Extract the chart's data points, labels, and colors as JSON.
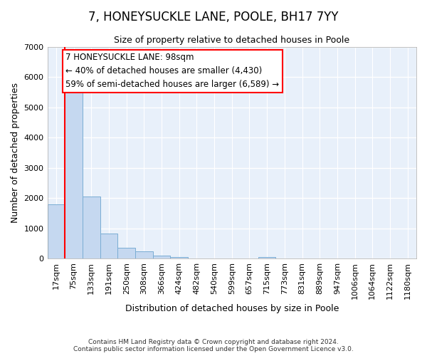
{
  "title": "7, HONEYSUCKLE LANE, POOLE, BH17 7YY",
  "subtitle": "Size of property relative to detached houses in Poole",
  "xlabel": "Distribution of detached houses by size in Poole",
  "ylabel": "Number of detached properties",
  "bar_color": "#c5d8f0",
  "bar_edge_color": "#7aadd4",
  "background_color": "#e8f0fa",
  "fig_background": "#ffffff",
  "grid_color": "#ffffff",
  "categories": [
    "17sqm",
    "75sqm",
    "133sqm",
    "191sqm",
    "250sqm",
    "308sqm",
    "366sqm",
    "424sqm",
    "482sqm",
    "540sqm",
    "599sqm",
    "657sqm",
    "715sqm",
    "773sqm",
    "831sqm",
    "889sqm",
    "947sqm",
    "1006sqm",
    "1064sqm",
    "1122sqm",
    "1180sqm"
  ],
  "values": [
    1800,
    5750,
    2060,
    830,
    360,
    240,
    100,
    60,
    0,
    0,
    0,
    0,
    60,
    0,
    0,
    0,
    0,
    0,
    0,
    0,
    0
  ],
  "ylim": [
    0,
    7000
  ],
  "yticks": [
    0,
    1000,
    2000,
    3000,
    4000,
    5000,
    6000,
    7000
  ],
  "red_line_x": 0.5,
  "annotation_line1": "7 HONEYSUCKLE LANE: 98sqm",
  "annotation_line2": "← 40% of detached houses are smaller (4,430)",
  "annotation_line3": "59% of semi-detached houses are larger (6,589) →",
  "footer_line1": "Contains HM Land Registry data © Crown copyright and database right 2024.",
  "footer_line2": "Contains public sector information licensed under the Open Government Licence v3.0.",
  "title_fontsize": 12,
  "subtitle_fontsize": 9,
  "ylabel_fontsize": 9,
  "xlabel_fontsize": 9,
  "tick_fontsize": 8,
  "annot_fontsize": 8.5
}
